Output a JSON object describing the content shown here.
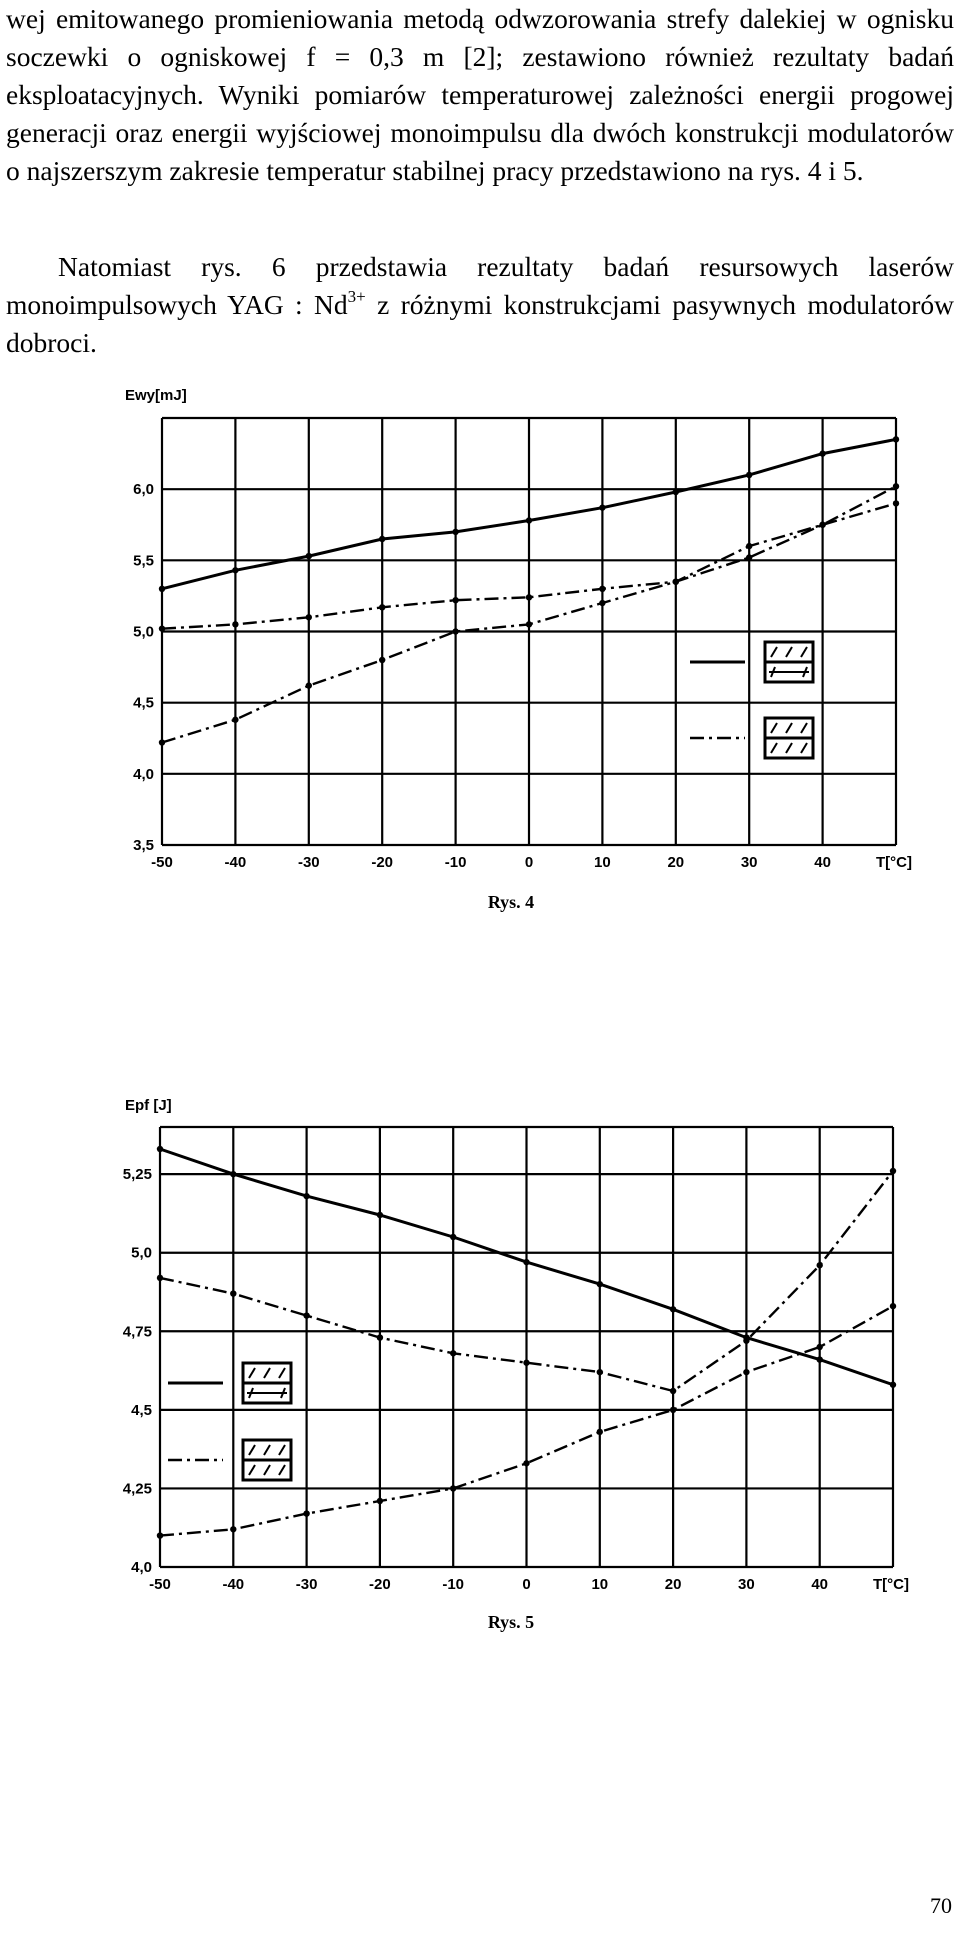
{
  "text": {
    "para1": "wej emitowanego promieniowania metodą odwzorowania strefy dalekiej w ognisku soczewki o ogniskowej f = 0,3 m [2]; zestawiono również rezultaty badań eksploatacyjnych. Wyniki pomiarów temperaturowej zależności energii progowej generacji oraz energii wyjściowej monoimpulsu dla dwóch konstrukcji modulatorów o najszerszym zakresie temperatur stabilnej pracy przedstawiono na rys. 4 i 5.",
    "para2_main": "Natomiast rys. 6 przedstawia rezultaty badań resursowych laserów monoimpulsowych YAG : Nd",
    "para2_sup": "3+",
    "para2_end": " z różnymi konstrukcjami pasywnych modulatorów dobroci.",
    "page_number": "70"
  },
  "chart_data": [
    {
      "type": "line",
      "caption": "Rys. 4",
      "ylabel": "Ewy[mJ]",
      "xlabel": "T[°C]",
      "x_tick_labels": [
        "-50",
        "-40",
        "-30",
        "-20",
        "-10",
        "0",
        "10",
        "20",
        "30",
        "40"
      ],
      "y_tick_labels": [
        "3,5",
        "4,0",
        "4,5",
        "5,0",
        "5,5",
        "6,0"
      ],
      "xlim": [
        -50,
        50
      ],
      "ylim": [
        3.5,
        6.5
      ],
      "series": [
        {
          "style": "solid",
          "x": [
            -50,
            -40,
            -30,
            -20,
            -10,
            0,
            10,
            20,
            30,
            40,
            50
          ],
          "y": [
            5.3,
            5.43,
            5.53,
            5.65,
            5.7,
            5.78,
            5.87,
            5.98,
            6.1,
            6.25,
            6.35
          ]
        },
        {
          "style": "dash-dot",
          "x": [
            -50,
            -40,
            -30,
            -20,
            -10,
            0,
            10,
            20,
            30,
            40,
            50
          ],
          "y": [
            5.02,
            5.05,
            5.1,
            5.17,
            5.22,
            5.24,
            5.3,
            5.35,
            5.6,
            5.75,
            5.9
          ]
        },
        {
          "style": "dash-dot",
          "x": [
            -50,
            -40,
            -30,
            -20,
            -10,
            0,
            10,
            20,
            30,
            40,
            50
          ],
          "y": [
            4.22,
            4.38,
            4.62,
            4.8,
            5.0,
            5.05,
            5.2,
            5.35,
            5.52,
            5.75,
            6.02
          ]
        }
      ],
      "legend": "right"
    },
    {
      "type": "line",
      "caption": "Rys. 5",
      "ylabel": "Epf [J]",
      "xlabel": "T[°C]",
      "x_tick_labels": [
        "-50",
        "-40",
        "-30",
        "-20",
        "-10",
        "0",
        "10",
        "20",
        "30",
        "40"
      ],
      "y_tick_labels": [
        "4,0",
        "4,25",
        "4,5",
        "4,75",
        "5,0",
        "5,25"
      ],
      "xlim": [
        -50,
        50
      ],
      "ylim": [
        4.0,
        5.4
      ],
      "series": [
        {
          "style": "solid",
          "x": [
            -50,
            -40,
            -30,
            -20,
            -10,
            0,
            10,
            20,
            30,
            40,
            50
          ],
          "y": [
            5.33,
            5.25,
            5.18,
            5.12,
            5.05,
            4.97,
            4.9,
            4.82,
            4.73,
            4.66,
            4.58
          ]
        },
        {
          "style": "dash-dot",
          "x": [
            -50,
            -40,
            -30,
            -20,
            -10,
            0,
            10,
            20,
            30,
            40,
            50
          ],
          "y": [
            4.92,
            4.87,
            4.8,
            4.73,
            4.68,
            4.65,
            4.62,
            4.56,
            4.72,
            4.96,
            5.26
          ]
        },
        {
          "style": "dash-dot",
          "x": [
            -50,
            -40,
            -30,
            -20,
            -10,
            0,
            10,
            20,
            30,
            40,
            50
          ],
          "y": [
            4.1,
            4.12,
            4.17,
            4.21,
            4.25,
            4.33,
            4.43,
            4.5,
            4.62,
            4.7,
            4.83
          ]
        }
      ],
      "legend": "left"
    }
  ]
}
